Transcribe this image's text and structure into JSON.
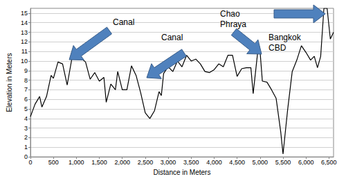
{
  "chart_data": {
    "type": "line",
    "x_label": "Distance in Meters",
    "y_label": "Elevation in Meters",
    "color": "#000000",
    "grid": true,
    "xlim": [
      0,
      6600
    ],
    "ylim": [
      0,
      15.5
    ],
    "xticks": [
      0,
      500,
      {
        "value": 1000,
        "label": "1,000"
      },
      {
        "value": 1500,
        "label": "1,500"
      },
      {
        "value": 2000,
        "label": "2,000"
      },
      {
        "value": 2500,
        "label": "2,500"
      },
      {
        "value": 3000,
        "label": "3,000"
      },
      {
        "value": 3500,
        "label": "3,500"
      },
      {
        "value": 4000,
        "label": "4,000"
      },
      {
        "value": 4500,
        "label": "4,500"
      },
      {
        "value": 5000,
        "label": "5,000"
      },
      {
        "value": 5500,
        "label": "5,500"
      },
      {
        "value": 6000,
        "label": "6,000"
      },
      {
        "value": 6500,
        "label": "6,500"
      }
    ],
    "yticks": [
      0,
      1,
      2,
      3,
      4,
      5,
      6,
      7,
      8,
      9,
      10,
      11,
      12,
      13,
      14,
      15
    ],
    "x": [
      0,
      100,
      200,
      250,
      350,
      450,
      500,
      600,
      700,
      800,
      900,
      1000,
      1100,
      1200,
      1300,
      1400,
      1500,
      1600,
      1650,
      1750,
      1850,
      1900,
      2000,
      2100,
      2200,
      2300,
      2400,
      2500,
      2600,
      2700,
      2800,
      2850,
      2900,
      3000,
      3100,
      3200,
      3300,
      3400,
      3500,
      3600,
      3700,
      3800,
      3900,
      4000,
      4100,
      4200,
      4300,
      4400,
      4500,
      4600,
      4700,
      4800,
      4850,
      4950,
      5000,
      5050,
      5150,
      5250,
      5350,
      5450,
      5500,
      5600,
      5700,
      5800,
      5900,
      6000,
      6100,
      6180,
      6250,
      6320,
      6390,
      6460,
      6530,
      6600
    ],
    "values": [
      4.2,
      5.5,
      6.3,
      5.2,
      6.3,
      8.5,
      8.2,
      9.9,
      9.7,
      7.5,
      10.2,
      10.5,
      10.3,
      9.9,
      8.1,
      8.8,
      7.9,
      8.3,
      5.7,
      7.6,
      7.0,
      8.9,
      7.0,
      7.0,
      9.5,
      8.5,
      6.7,
      4.6,
      4.0,
      4.8,
      6.8,
      6.4,
      8.7,
      9.4,
      8.9,
      10.0,
      9.4,
      10.6,
      10.0,
      10.2,
      9.7,
      8.9,
      8.8,
      9.1,
      9.7,
      9.4,
      10.6,
      10.6,
      8.4,
      9.2,
      9.3,
      9.3,
      6.6,
      11.0,
      11.0,
      7.9,
      7.8,
      7.0,
      6.1,
      2.6,
      0.3,
      4.9,
      8.9,
      10.1,
      11.6,
      10.9,
      10.1,
      10.5,
      9.3,
      10.5,
      15.5,
      15.5,
      12.3,
      13.0
    ],
    "annotations": [
      {
        "text": "Canal"
      },
      {
        "text": "Canal"
      },
      {
        "text": "Chao\nPhraya"
      },
      {
        "text": "Bangkok\nCBD"
      }
    ]
  }
}
